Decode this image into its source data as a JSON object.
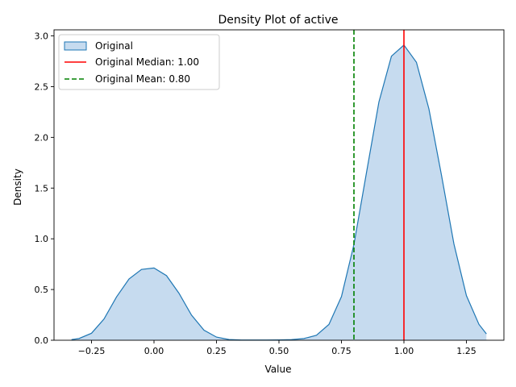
{
  "chart_data": {
    "type": "area",
    "title": "Density Plot of active",
    "xlabel": "Value",
    "ylabel": "Density",
    "xlim": [
      -0.4,
      1.4
    ],
    "ylim": [
      0,
      3.06
    ],
    "xticks": [
      -0.25,
      0.0,
      0.25,
      0.5,
      0.75,
      1.0,
      1.25
    ],
    "xtick_labels": [
      "−0.25",
      "0.00",
      "0.25",
      "0.50",
      "0.75",
      "1.00",
      "1.25"
    ],
    "yticks": [
      0.0,
      0.5,
      1.0,
      1.5,
      2.0,
      2.5,
      3.0
    ],
    "ytick_labels": [
      "0.0",
      "0.5",
      "1.0",
      "1.5",
      "2.0",
      "2.5",
      "3.0"
    ],
    "grid": false,
    "legend_position": "top-left",
    "series": [
      {
        "name": "Original",
        "kind": "density-area",
        "color": "#1f77b4",
        "fill": "#c6dbef",
        "x": [
          -0.33,
          -0.3,
          -0.25,
          -0.2,
          -0.15,
          -0.1,
          -0.05,
          0.0,
          0.05,
          0.1,
          0.15,
          0.2,
          0.25,
          0.3,
          0.35,
          0.4,
          0.45,
          0.5,
          0.55,
          0.6,
          0.65,
          0.7,
          0.75,
          0.8,
          0.85,
          0.9,
          0.95,
          1.0,
          1.05,
          1.1,
          1.15,
          1.2,
          1.25,
          1.3,
          1.33
        ],
        "y": [
          0.006,
          0.017,
          0.069,
          0.209,
          0.427,
          0.604,
          0.698,
          0.712,
          0.637,
          0.463,
          0.248,
          0.099,
          0.031,
          0.007,
          0.002,
          0.002,
          0.002,
          0.003,
          0.006,
          0.017,
          0.049,
          0.156,
          0.43,
          0.945,
          1.65,
          2.35,
          2.8,
          2.91,
          2.74,
          2.28,
          1.63,
          0.95,
          0.44,
          0.157,
          0.063
        ]
      },
      {
        "name": "Original Median: 1.00",
        "kind": "vline",
        "value": 1.0,
        "color": "#ff0000",
        "dash": "solid"
      },
      {
        "name": "Original Mean: 0.80",
        "kind": "vline",
        "value": 0.8,
        "color": "#008000",
        "dash": "dashed"
      }
    ]
  }
}
